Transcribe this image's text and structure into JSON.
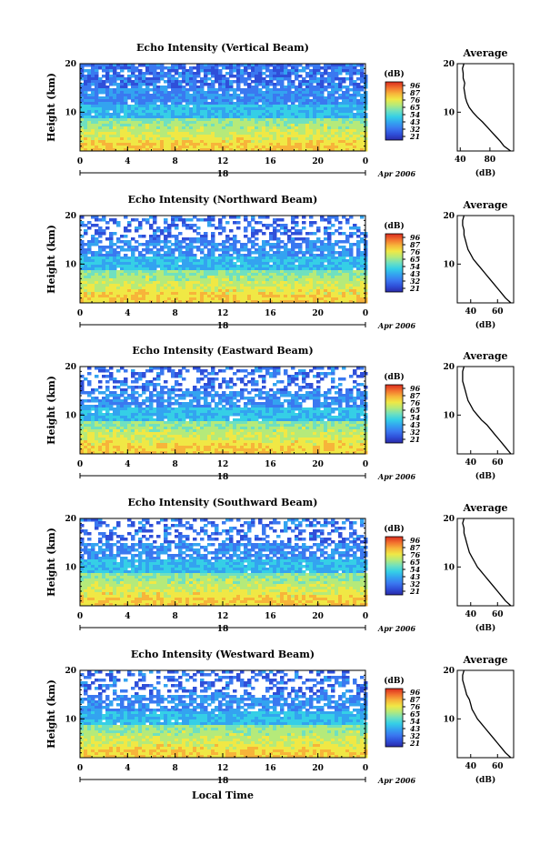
{
  "figure": {
    "xlabel": "Local Time",
    "date_label": "Apr 2006",
    "day_label": "18",
    "colorbar_unit": "(dB)",
    "avg_title": "Average",
    "avg_xlabel": "(dB)"
  },
  "colors": {
    "colormap": [
      "#2a2aa8",
      "#2f4fd9",
      "#3a78f0",
      "#33a3f0",
      "#35cfe6",
      "#6fe0c0",
      "#b5ea7a",
      "#f0e845",
      "#f7b43a",
      "#f2702e",
      "#d92b1e"
    ]
  },
  "chart_data": [
    {
      "type": "heatmap",
      "title": "Echo Intensity (Vertical Beam)",
      "ylabel": "Height (km)",
      "xlim": [
        0,
        24
      ],
      "ylim": [
        2,
        20
      ],
      "xticks": [
        "0",
        "4",
        "8",
        "12",
        "16",
        "20",
        "0"
      ],
      "yticks": [
        "10",
        "20"
      ],
      "colorbar_ticks": [
        "96",
        "87",
        "76",
        "65",
        "54",
        "43",
        "32",
        "21"
      ],
      "average": {
        "title": "Average",
        "xlabel": "(dB)",
        "xticks": [
          "40",
          "80"
        ],
        "xlim": [
          36,
          112
        ],
        "ylim": [
          2,
          20
        ],
        "height_km": [
          2,
          3,
          4,
          5,
          6,
          7,
          8,
          9,
          10,
          11,
          12,
          13,
          14,
          15,
          16,
          17,
          18,
          19,
          20
        ],
        "db": [
          108,
          99,
          94,
          88,
          82,
          76,
          70,
          63,
          57,
          52,
          49,
          47,
          46,
          45,
          46,
          44,
          44,
          43,
          45
        ]
      }
    },
    {
      "type": "heatmap",
      "title": "Echo Intensity (Northward Beam)",
      "ylabel": "Height (km)",
      "xlim": [
        0,
        24
      ],
      "ylim": [
        2,
        20
      ],
      "xticks": [
        "0",
        "4",
        "8",
        "12",
        "16",
        "20",
        "0"
      ],
      "yticks": [
        "10",
        "20"
      ],
      "colorbar_ticks": [
        "96",
        "87",
        "76",
        "65",
        "54",
        "43",
        "32",
        "21"
      ],
      "average": {
        "title": "Average",
        "xlabel": "(dB)",
        "xticks": [
          "40",
          "60"
        ],
        "xlim": [
          30,
          72
        ],
        "ylim": [
          2,
          20
        ],
        "height_km": [
          2,
          3,
          4,
          5,
          6,
          7,
          8,
          9,
          10,
          11,
          12,
          13,
          14,
          15,
          16,
          17,
          18,
          19,
          20
        ],
        "db": [
          70,
          66,
          63,
          60,
          57,
          54,
          51,
          48,
          45,
          42,
          40,
          38,
          37,
          36,
          35,
          35,
          34,
          34,
          35
        ]
      }
    },
    {
      "type": "heatmap",
      "title": "Echo Intensity (Eastward Beam)",
      "ylabel": "Height (km)",
      "xlim": [
        0,
        24
      ],
      "ylim": [
        2,
        20
      ],
      "xticks": [
        "0",
        "4",
        "8",
        "12",
        "16",
        "20",
        "0"
      ],
      "yticks": [
        "10",
        "20"
      ],
      "colorbar_ticks": [
        "96",
        "87",
        "76",
        "65",
        "54",
        "43",
        "32",
        "21"
      ],
      "average": {
        "title": "Average",
        "xlabel": "(dB)",
        "xticks": [
          "40",
          "60"
        ],
        "xlim": [
          30,
          72
        ],
        "ylim": [
          2,
          20
        ],
        "height_km": [
          2,
          3,
          4,
          5,
          6,
          7,
          8,
          9,
          10,
          11,
          12,
          13,
          14,
          15,
          16,
          17,
          18,
          19,
          20
        ],
        "db": [
          70,
          67,
          64,
          61,
          58,
          55,
          52,
          48,
          45,
          42,
          40,
          38,
          37,
          36,
          35,
          34,
          34,
          34,
          35
        ]
      }
    },
    {
      "type": "heatmap",
      "title": "Echo Intensity (Southward Beam)",
      "ylabel": "Height (km)",
      "xlim": [
        0,
        24
      ],
      "ylim": [
        2,
        20
      ],
      "xticks": [
        "0",
        "4",
        "8",
        "12",
        "16",
        "20",
        "0"
      ],
      "yticks": [
        "10",
        "20"
      ],
      "colorbar_ticks": [
        "96",
        "87",
        "76",
        "65",
        "54",
        "43",
        "32",
        "21"
      ],
      "average": {
        "title": "Average",
        "xlabel": "(dB)",
        "xticks": [
          "40",
          "60"
        ],
        "xlim": [
          30,
          72
        ],
        "ylim": [
          2,
          20
        ],
        "height_km": [
          2,
          3,
          4,
          5,
          6,
          7,
          8,
          9,
          10,
          11,
          12,
          13,
          14,
          15,
          16,
          17,
          18,
          19,
          20
        ],
        "db": [
          70,
          66,
          63,
          60,
          57,
          54,
          51,
          48,
          45,
          43,
          41,
          39,
          38,
          37,
          36,
          35,
          35,
          34,
          35
        ]
      }
    },
    {
      "type": "heatmap",
      "title": "Echo Intensity (Westward Beam)",
      "ylabel": "Height (km)",
      "xlim": [
        0,
        24
      ],
      "ylim": [
        2,
        20
      ],
      "xticks": [
        "0",
        "4",
        "8",
        "12",
        "16",
        "20",
        "0"
      ],
      "yticks": [
        "10",
        "20"
      ],
      "colorbar_ticks": [
        "96",
        "87",
        "76",
        "65",
        "54",
        "43",
        "32",
        "21"
      ],
      "average": {
        "title": "Average",
        "xlabel": "(dB)",
        "xticks": [
          "40",
          "60"
        ],
        "xlim": [
          30,
          72
        ],
        "ylim": [
          2,
          20
        ],
        "height_km": [
          2,
          3,
          4,
          5,
          6,
          7,
          8,
          9,
          10,
          11,
          12,
          13,
          14,
          15,
          16,
          17,
          18,
          19,
          20
        ],
        "db": [
          70,
          66,
          63,
          60,
          57,
          54,
          51,
          48,
          45,
          43,
          41,
          40,
          39,
          37,
          36,
          35,
          34,
          34,
          35
        ]
      }
    }
  ]
}
